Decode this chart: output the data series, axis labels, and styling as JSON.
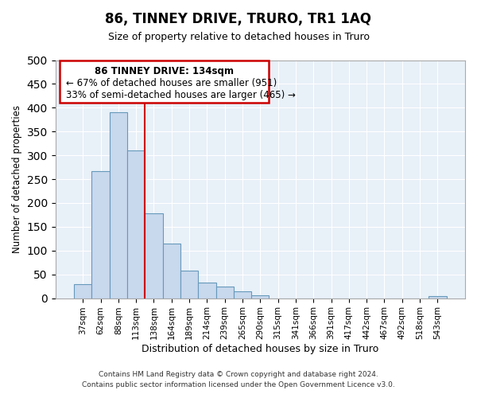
{
  "title": "86, TINNEY DRIVE, TRURO, TR1 1AQ",
  "subtitle": "Size of property relative to detached houses in Truro",
  "xlabel": "Distribution of detached houses by size in Truro",
  "ylabel": "Number of detached properties",
  "footer_line1": "Contains HM Land Registry data © Crown copyright and database right 2024.",
  "footer_line2": "Contains public sector information licensed under the Open Government Licence v3.0.",
  "bar_labels": [
    "37sqm",
    "62sqm",
    "88sqm",
    "113sqm",
    "138sqm",
    "164sqm",
    "189sqm",
    "214sqm",
    "239sqm",
    "265sqm",
    "290sqm",
    "315sqm",
    "341sqm",
    "366sqm",
    "391sqm",
    "417sqm",
    "442sqm",
    "467sqm",
    "492sqm",
    "518sqm",
    "543sqm"
  ],
  "bar_values": [
    30,
    267,
    390,
    311,
    179,
    115,
    58,
    32,
    25,
    14,
    6,
    0,
    0,
    0,
    0,
    0,
    0,
    0,
    0,
    0,
    5
  ],
  "bar_color": "#c8d8ed",
  "bar_edge_color": "#6699bb",
  "vline_color": "#cc0000",
  "ylim": [
    0,
    500
  ],
  "yticks": [
    0,
    50,
    100,
    150,
    200,
    250,
    300,
    350,
    400,
    450,
    500
  ],
  "annotation_title": "86 TINNEY DRIVE: 134sqm",
  "annotation_line1": "← 67% of detached houses are smaller (951)",
  "annotation_line2": "33% of semi-detached houses are larger (465) →",
  "grid_color": "#ccddee",
  "background_color": "#e8f0f8"
}
